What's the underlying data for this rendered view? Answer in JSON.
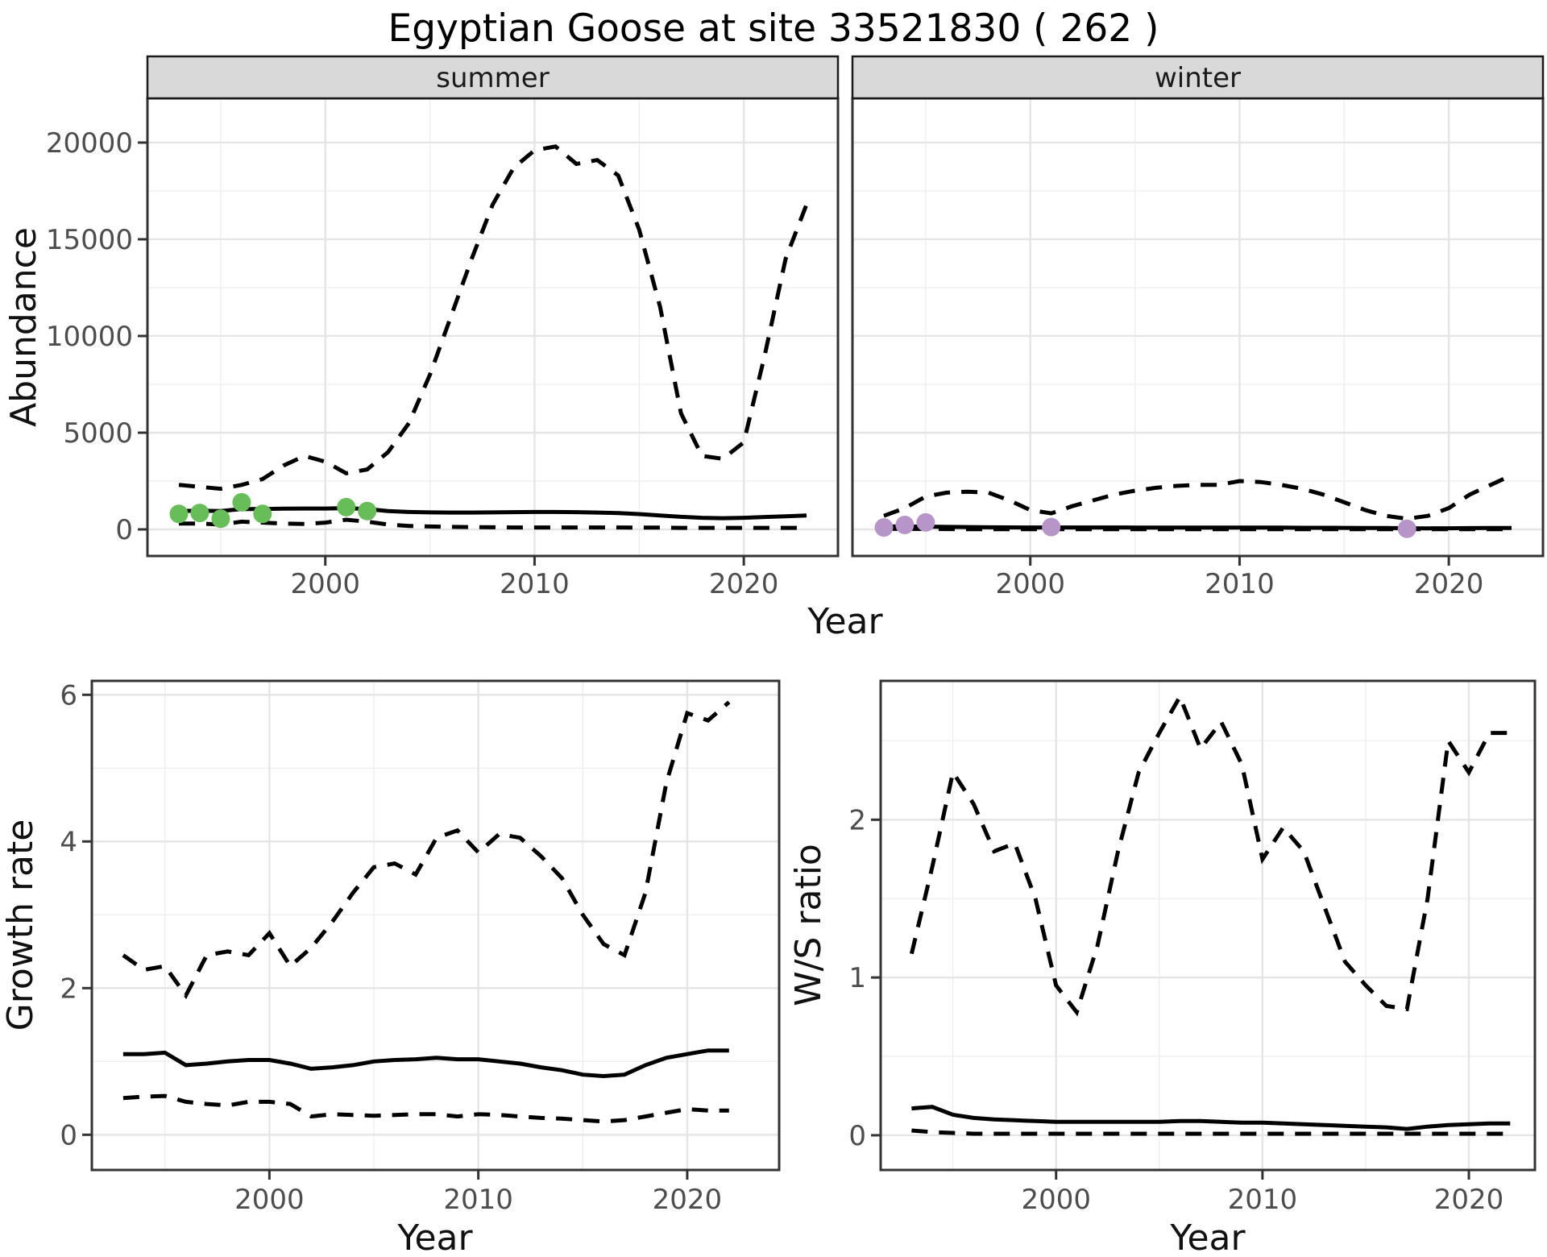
{
  "title": "Egyptian Goose at site 33521830 ( 262 )",
  "colors": {
    "summer_points": "#67bd57",
    "winter_points": "#b795c8",
    "line": "#000000",
    "strip_bg": "#d9d9d9",
    "strip_border": "#1a1a1a",
    "panel_border": "#333333",
    "grid_major": "#e5e5e5",
    "grid_minor": "#efefef",
    "tick_mark": "#333333",
    "axis_text": "#4d4d4d",
    "background": "#ffffff"
  },
  "chart_data": [
    {
      "id": "abundance",
      "type": "line",
      "title": "",
      "xlabel": "Year",
      "ylabel": "Abundance",
      "facets": [
        "summer",
        "winter"
      ],
      "x": [
        1993,
        1994,
        1995,
        1996,
        1997,
        1998,
        1999,
        2000,
        2001,
        2002,
        2003,
        2004,
        2005,
        2006,
        2007,
        2008,
        2009,
        2010,
        2011,
        2012,
        2013,
        2014,
        2015,
        2016,
        2017,
        2018,
        2019,
        2020,
        2021,
        2022,
        2023
      ],
      "xlim": [
        1991.5,
        2024.5
      ],
      "ylim": [
        -1375,
        22290
      ],
      "xticks": [
        2000,
        2010,
        2020
      ],
      "xticks_minor": [
        1995,
        2005,
        2015
      ],
      "yticks": [
        0,
        5000,
        10000,
        15000,
        20000
      ],
      "ytick_labels": [
        "0",
        "5000",
        "10000",
        "15000",
        "20000"
      ],
      "yticks_minor": [
        2500,
        7500,
        12500,
        17500
      ],
      "grid": true,
      "legend_position": "none",
      "series": [
        {
          "facet": "summer",
          "name": "upper_ci",
          "style": "dashed",
          "values": [
            2300,
            2200,
            2100,
            2300,
            2600,
            3300,
            3800,
            3500,
            2900,
            3100,
            4000,
            5500,
            8000,
            11000,
            14000,
            16800,
            18700,
            19600,
            19800,
            18900,
            19100,
            18300,
            15500,
            11500,
            6000,
            3800,
            3650,
            4500,
            9000,
            14000,
            16800
          ]
        },
        {
          "facet": "summer",
          "name": "median",
          "style": "solid",
          "values": [
            950,
            970,
            950,
            1050,
            1050,
            1070,
            1080,
            1080,
            1100,
            1050,
            950,
            900,
            880,
            870,
            870,
            880,
            890,
            900,
            900,
            890,
            870,
            840,
            790,
            720,
            650,
            600,
            580,
            600,
            640,
            680,
            720
          ]
        },
        {
          "facet": "summer",
          "name": "lower_ci",
          "style": "dashed",
          "values": [
            300,
            300,
            250,
            400,
            350,
            300,
            280,
            350,
            500,
            400,
            250,
            180,
            150,
            130,
            120,
            110,
            100,
            100,
            100,
            100,
            100,
            100,
            90,
            90,
            80,
            80,
            80,
            80,
            80,
            80,
            80
          ]
        },
        {
          "facet": "winter",
          "name": "upper_ci",
          "style": "dashed",
          "values": [
            700,
            1100,
            1700,
            1900,
            1950,
            1900,
            1500,
            1000,
            830,
            1200,
            1500,
            1800,
            2000,
            2150,
            2250,
            2300,
            2300,
            2500,
            2450,
            2300,
            2100,
            1800,
            1400,
            1000,
            700,
            550,
            700,
            1100,
            1800,
            2300,
            2800
          ]
        },
        {
          "facet": "winter",
          "name": "median",
          "style": "solid",
          "values": [
            150,
            150,
            145,
            130,
            120,
            110,
            105,
            100,
            100,
            100,
            100,
            100,
            95,
            95,
            95,
            95,
            95,
            95,
            90,
            90,
            85,
            85,
            80,
            75,
            70,
            60,
            55,
            60,
            65,
            70,
            70
          ]
        },
        {
          "facet": "winter",
          "name": "lower_ci",
          "style": "dashed",
          "values": [
            30,
            25,
            20,
            15,
            12,
            10,
            10,
            10,
            10,
            10,
            10,
            10,
            10,
            10,
            10,
            10,
            10,
            10,
            10,
            10,
            10,
            10,
            10,
            10,
            8,
            8,
            8,
            8,
            8,
            8,
            8
          ]
        }
      ],
      "points": [
        {
          "facet": "summer",
          "name": "observed_summer",
          "color_key": "summer_points",
          "data": [
            [
              1993,
              800
            ],
            [
              1994,
              850
            ],
            [
              1995,
              550
            ],
            [
              1996,
              1400
            ],
            [
              1997,
              800
            ],
            [
              2001,
              1150
            ],
            [
              2002,
              950
            ]
          ]
        },
        {
          "facet": "winter",
          "name": "observed_winter",
          "color_key": "winter_points",
          "data": [
            [
              1993,
              100
            ],
            [
              1994,
              230
            ],
            [
              1995,
              360
            ],
            [
              2001,
              120
            ],
            [
              2018,
              30
            ]
          ]
        }
      ]
    },
    {
      "id": "growth_rate",
      "type": "line",
      "title": "",
      "xlabel": "Year",
      "ylabel": "Growth rate",
      "facets": [
        "all"
      ],
      "x": [
        1993,
        1994,
        1995,
        1996,
        1997,
        1998,
        1999,
        2000,
        2001,
        2002,
        2003,
        2004,
        2005,
        2006,
        2007,
        2008,
        2009,
        2010,
        2011,
        2012,
        2013,
        2014,
        2015,
        2016,
        2017,
        2018,
        2019,
        2020,
        2021,
        2022
      ],
      "xlim": [
        1991.5,
        2024.4
      ],
      "ylim": [
        -0.48,
        6.19
      ],
      "xticks": [
        2000,
        2010,
        2020
      ],
      "xticks_minor": [
        1995,
        2005,
        2015
      ],
      "yticks": [
        0,
        2,
        4,
        6
      ],
      "ytick_labels": [
        "0",
        "2",
        "4",
        "6"
      ],
      "yticks_minor": [
        1,
        3,
        5
      ],
      "grid": true,
      "legend_position": "none",
      "series": [
        {
          "facet": "all",
          "name": "upper_ci",
          "style": "dashed",
          "values": [
            2.45,
            2.25,
            2.3,
            1.9,
            2.45,
            2.5,
            2.45,
            2.75,
            2.3,
            2.55,
            2.9,
            3.3,
            3.65,
            3.7,
            3.55,
            4.05,
            4.15,
            3.85,
            4.1,
            4.05,
            3.8,
            3.5,
            3.0,
            2.6,
            2.45,
            3.3,
            4.8,
            5.75,
            5.65,
            5.9
          ]
        },
        {
          "facet": "all",
          "name": "median",
          "style": "solid",
          "values": [
            1.1,
            1.1,
            1.12,
            0.95,
            0.97,
            1.0,
            1.02,
            1.02,
            0.97,
            0.9,
            0.92,
            0.95,
            1.0,
            1.02,
            1.03,
            1.05,
            1.03,
            1.03,
            1.0,
            0.97,
            0.92,
            0.88,
            0.82,
            0.8,
            0.82,
            0.95,
            1.05,
            1.1,
            1.15,
            1.15
          ]
        },
        {
          "facet": "all",
          "name": "lower_ci",
          "style": "dashed",
          "values": [
            0.5,
            0.52,
            0.53,
            0.45,
            0.42,
            0.4,
            0.45,
            0.45,
            0.42,
            0.25,
            0.28,
            0.27,
            0.26,
            0.27,
            0.28,
            0.28,
            0.25,
            0.28,
            0.27,
            0.25,
            0.23,
            0.22,
            0.2,
            0.18,
            0.2,
            0.25,
            0.3,
            0.35,
            0.33,
            0.33
          ]
        }
      ],
      "points": []
    },
    {
      "id": "ws_ratio",
      "type": "line",
      "title": "",
      "xlabel": "Year",
      "ylabel": "W/S ratio",
      "facets": [
        "all"
      ],
      "x": [
        1993,
        1994,
        1995,
        1996,
        1997,
        1998,
        1999,
        2000,
        2001,
        2002,
        2003,
        2004,
        2005,
        2006,
        2007,
        2008,
        2009,
        2010,
        2011,
        2012,
        2013,
        2014,
        2015,
        2016,
        2017,
        2018,
        2019,
        2020,
        2021,
        2022
      ],
      "xlim": [
        1991.5,
        2023.2
      ],
      "ylim": [
        -0.22,
        2.88
      ],
      "xticks": [
        2000,
        2010,
        2020
      ],
      "xticks_minor": [
        1995,
        2005,
        2015
      ],
      "yticks": [
        0,
        1,
        2
      ],
      "ytick_labels": [
        "0",
        "1",
        "2"
      ],
      "yticks_minor": [
        0.5,
        1.5,
        2.5
      ],
      "grid": true,
      "legend_position": "none",
      "series": [
        {
          "facet": "all",
          "name": "upper_ci",
          "style": "dashed",
          "values": [
            1.15,
            1.7,
            2.3,
            2.1,
            1.8,
            1.85,
            1.5,
            0.95,
            0.78,
            1.2,
            1.8,
            2.3,
            2.55,
            2.78,
            2.45,
            2.62,
            2.35,
            1.75,
            1.95,
            1.8,
            1.45,
            1.1,
            0.95,
            0.82,
            0.8,
            1.5,
            2.5,
            2.3,
            2.55,
            2.55
          ]
        },
        {
          "facet": "all",
          "name": "median",
          "style": "solid",
          "values": [
            0.17,
            0.18,
            0.13,
            0.11,
            0.1,
            0.095,
            0.09,
            0.085,
            0.085,
            0.085,
            0.085,
            0.085,
            0.085,
            0.09,
            0.09,
            0.085,
            0.08,
            0.08,
            0.075,
            0.07,
            0.065,
            0.06,
            0.055,
            0.05,
            0.04,
            0.055,
            0.065,
            0.07,
            0.075,
            0.075
          ]
        },
        {
          "facet": "all",
          "name": "lower_ci",
          "style": "dashed",
          "values": [
            0.03,
            0.02,
            0.015,
            0.01,
            0.01,
            0.01,
            0.01,
            0.01,
            0.01,
            0.01,
            0.01,
            0.01,
            0.01,
            0.01,
            0.01,
            0.01,
            0.01,
            0.01,
            0.01,
            0.01,
            0.01,
            0.01,
            0.01,
            0.01,
            0.01,
            0.01,
            0.01,
            0.01,
            0.01,
            0.01
          ]
        }
      ],
      "points": []
    }
  ]
}
